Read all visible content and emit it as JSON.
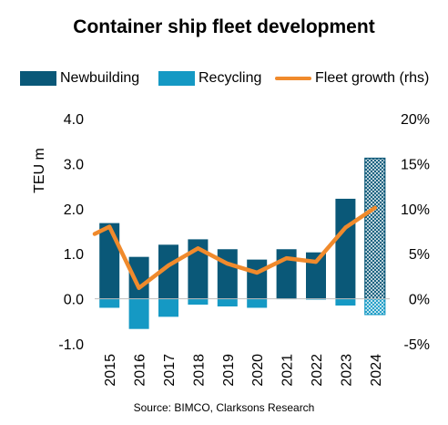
{
  "chart_data": {
    "type": "bar",
    "title": "Container ship fleet development",
    "ylabel": "TEU m",
    "y2label": "",
    "ylim": [
      -1.0,
      4.0
    ],
    "y2lim": [
      -5,
      20
    ],
    "yticks": [
      "-1.0",
      "0.0",
      "1.0",
      "2.0",
      "3.0",
      "4.0"
    ],
    "y2ticks": [
      "-5%",
      "0%",
      "5%",
      "10%",
      "15%",
      "20%"
    ],
    "categories": [
      "2015",
      "2016",
      "2017",
      "2018",
      "2019",
      "2020",
      "2021",
      "2022",
      "2023",
      "2024"
    ],
    "forecast_category": "2024",
    "series": [
      {
        "name": "Newbuilding",
        "kind": "bar",
        "axis": "left",
        "color": "#0a5878",
        "values": [
          1.68,
          0.93,
          1.2,
          1.32,
          1.1,
          0.87,
          1.1,
          1.03,
          2.22,
          3.12
        ]
      },
      {
        "name": "Recycling",
        "kind": "bar",
        "axis": "left",
        "color": "#1599c4",
        "values": [
          -0.2,
          -0.67,
          -0.4,
          -0.13,
          -0.17,
          -0.2,
          -0.01,
          -0.02,
          -0.15,
          -0.35
        ]
      },
      {
        "name": "Fleet growth (rhs)",
        "kind": "line",
        "axis": "right",
        "color": "#f08a2c",
        "x": [
          "2014.5",
          "2015",
          "2016",
          "2017",
          "2018",
          "2019",
          "2020",
          "2021",
          "2022",
          "2023",
          "2024"
        ],
        "values": [
          7.2,
          8.0,
          1.2,
          3.7,
          5.6,
          3.9,
          2.9,
          4.5,
          4.1,
          7.9,
          10.1
        ]
      }
    ],
    "grid": false,
    "legend_position": "top"
  },
  "source": "Source: BIMCO, Clarksons Research"
}
